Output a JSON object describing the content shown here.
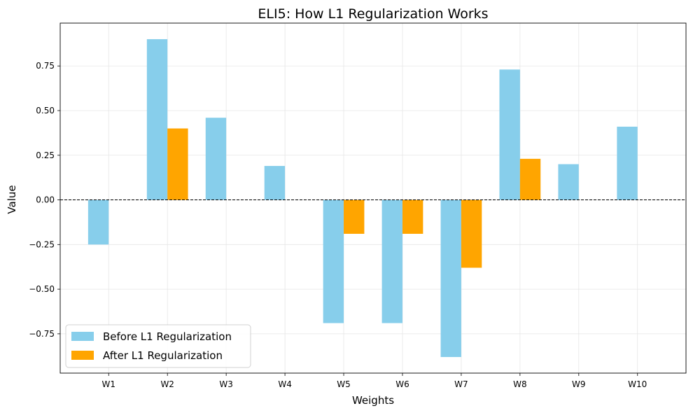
{
  "chart_data": {
    "type": "bar",
    "title": "ELI5: How L1 Regularization Works",
    "xlabel": "Weights",
    "ylabel": "Value",
    "categories": [
      "W1",
      "W2",
      "W3",
      "W4",
      "W5",
      "W6",
      "W7",
      "W8",
      "W9",
      "W10"
    ],
    "series": [
      {
        "name": "Before L1 Regularization",
        "color": "#87CEEB",
        "values": [
          -0.25,
          0.9,
          0.46,
          0.19,
          -0.69,
          -0.69,
          -0.88,
          0.73,
          0.2,
          0.41
        ]
      },
      {
        "name": "After L1 Regularization",
        "color": "#FFA500",
        "values": [
          0.0,
          0.4,
          0.0,
          0.0,
          -0.19,
          -0.19,
          -0.38,
          0.23,
          0.0,
          0.0
        ]
      }
    ],
    "ylim": [
      -0.97,
      0.99
    ],
    "yticks": [
      -0.75,
      -0.5,
      -0.25,
      0.0,
      0.25,
      0.5,
      0.75
    ],
    "ytick_labels": [
      "−0.75",
      "−0.50",
      "−0.25",
      "0.00",
      "0.25",
      "0.50",
      "0.75"
    ],
    "grid": true,
    "zero_line": "dashed",
    "legend_position": "lower-left"
  }
}
